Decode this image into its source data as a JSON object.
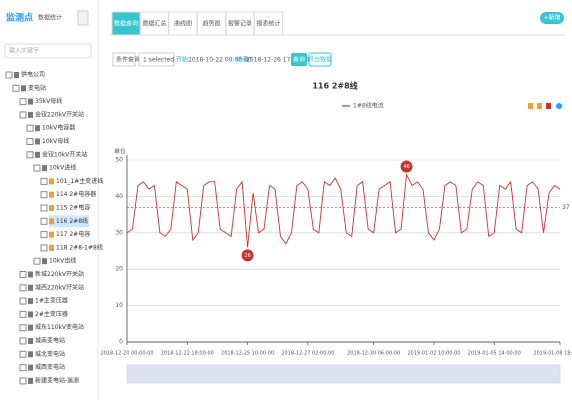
{
  "sidebar": {
    "title": "监测点",
    "stats_label": "数据统计",
    "search_placeholder": "输入关键字",
    "tree": [
      {
        "text": "供电公司",
        "level": 0
      },
      {
        "text": "变电站",
        "level": 1
      },
      {
        "text": "35kV母线",
        "level": 2
      },
      {
        "text": "金钗220kV开关站",
        "level": 2
      },
      {
        "text": "10kV电容器",
        "level": 3
      },
      {
        "text": "10kV母线",
        "level": 3
      },
      {
        "text": "金钗10kV开关站",
        "level": 3
      },
      {
        "text": "10kV进线",
        "level": 4
      },
      {
        "text": "101_1#主变进线",
        "level": 5
      },
      {
        "text": "114 2#电容器",
        "level": 5
      },
      {
        "text": "115 2#电容",
        "level": 5
      },
      {
        "text": "116 2#8线",
        "level": 5,
        "selected": true
      },
      {
        "text": "117 2#电容",
        "level": 5
      },
      {
        "text": "118 2#8-1#8线",
        "level": 5
      },
      {
        "text": "10kV出线",
        "level": 4
      },
      {
        "text": "新城220kV开关站",
        "level": 2
      },
      {
        "text": "城西220kV开关站",
        "level": 2
      },
      {
        "text": "1#主变压器",
        "level": 2
      },
      {
        "text": "2#主变压器",
        "level": 2
      },
      {
        "text": "城东110kV变电站",
        "level": 2
      },
      {
        "text": "城南变电站",
        "level": 2
      },
      {
        "text": "城北变电站",
        "level": 2
      },
      {
        "text": "城西变电站",
        "level": 2
      },
      {
        "text": "新建变电站-遥测",
        "level": 2
      }
    ]
  },
  "tabs": [
    "数据查询",
    "数据汇总",
    "曲线图",
    "趋势图",
    "报警记录",
    "报表统计"
  ],
  "add_button": "+新增",
  "toolbar": {
    "condition": "条件查询",
    "select": "1 selected",
    "start_label": "开始",
    "start": "2018-10-22 00:00:00",
    "end_label": "结束",
    "end": "2018-12-26 17:04:54",
    "query": "查询",
    "export": "导出数据"
  },
  "chart_data": {
    "type": "line",
    "title": "116 2#8线",
    "y_label": "单位",
    "series": [
      {
        "name": "1#8线电流",
        "color": "#c23531",
        "values": [
          30,
          31,
          43,
          44,
          42,
          43,
          30,
          29,
          31,
          44,
          43,
          42,
          28,
          30,
          43,
          44,
          44,
          31,
          30,
          29,
          42,
          44,
          26,
          41,
          30,
          31,
          43,
          42,
          29,
          27,
          30,
          43,
          44,
          42,
          31,
          30,
          44,
          43,
          45,
          42,
          30,
          29,
          43,
          44,
          31,
          30,
          42,
          43,
          44,
          30,
          31,
          46,
          43,
          44,
          42,
          30,
          28,
          31,
          43,
          44,
          43,
          30,
          31,
          42,
          44,
          43,
          29,
          30,
          43,
          42,
          44,
          31,
          30,
          43,
          44,
          42,
          30,
          41,
          43,
          42
        ]
      }
    ],
    "categories": [
      "2018-12-20 00:00:00",
      null,
      null,
      null,
      null,
      null,
      null,
      null,
      null,
      null,
      null,
      "2018-12-22 18:00:00",
      null,
      null,
      null,
      null,
      null,
      null,
      null,
      null,
      null,
      null,
      "2018-12-25 10:00:00",
      null,
      null,
      null,
      null,
      null,
      null,
      null,
      null,
      null,
      null,
      "2018-12-27 02:00:00",
      null,
      null,
      null,
      null,
      null,
      null,
      null,
      null,
      null,
      null,
      null,
      "2018-12-30 06:00:00",
      null,
      null,
      null,
      null,
      null,
      null,
      null,
      null,
      null,
      null,
      "2019-01-02 10:00:00",
      null,
      null,
      null,
      null,
      null,
      null,
      null,
      null,
      null,
      null,
      "2019-01-05 14:00:00",
      null,
      null,
      null,
      null,
      null,
      null,
      null,
      null,
      null,
      null,
      null,
      "2019-01-08 18:00:00"
    ],
    "average": 37,
    "ylim": [
      0,
      50
    ],
    "yticks": [
      0,
      10,
      20,
      30,
      40,
      50
    ],
    "grid": true
  }
}
